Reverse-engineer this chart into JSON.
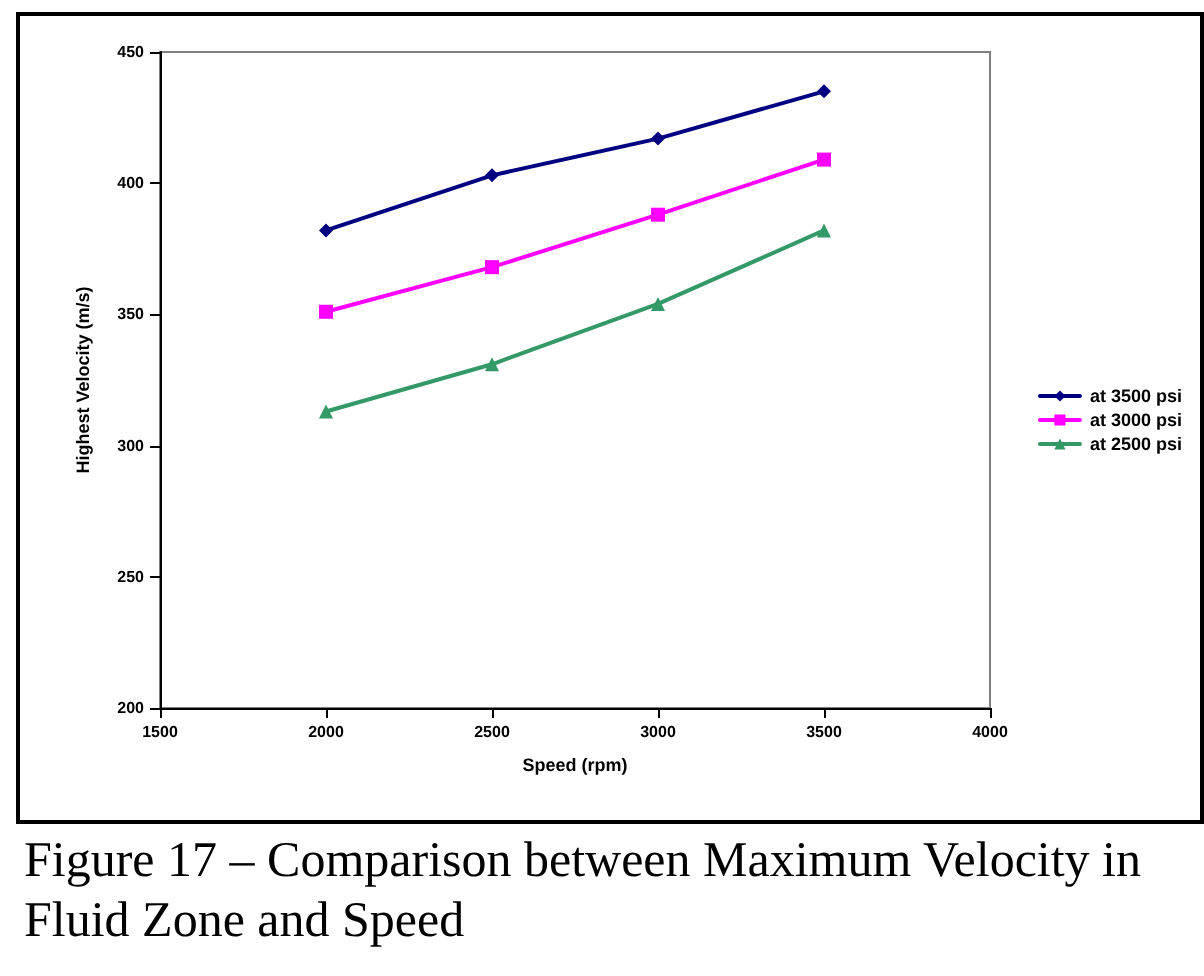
{
  "chart_data": {
    "type": "line",
    "xlabel": "Speed (rpm)",
    "ylabel": "Highest Velocity (m/s)",
    "x": [
      2000,
      2500,
      3000,
      3500
    ],
    "series": [
      {
        "name": "at 3500 psi",
        "color": "#000080",
        "marker": "diamond",
        "values": [
          382,
          403,
          417,
          435
        ]
      },
      {
        "name": "at 3000 psi",
        "color": "#ff00ff",
        "marker": "square",
        "values": [
          351,
          368,
          388,
          409
        ]
      },
      {
        "name": "at 2500 psi",
        "color": "#339966",
        "marker": "triangle",
        "values": [
          313,
          331,
          354,
          382
        ]
      }
    ],
    "xlim": [
      1500,
      4000
    ],
    "xticks": [
      1500,
      2000,
      2500,
      3000,
      3500,
      4000
    ],
    "ylim": [
      200,
      450
    ],
    "yticks": [
      200,
      250,
      300,
      350,
      400,
      450
    ],
    "grid": false,
    "legend": "right",
    "annotations": [
      "Figure 17 – Comparison between Maximum Velocity in Fluid Zone and Speed"
    ]
  }
}
